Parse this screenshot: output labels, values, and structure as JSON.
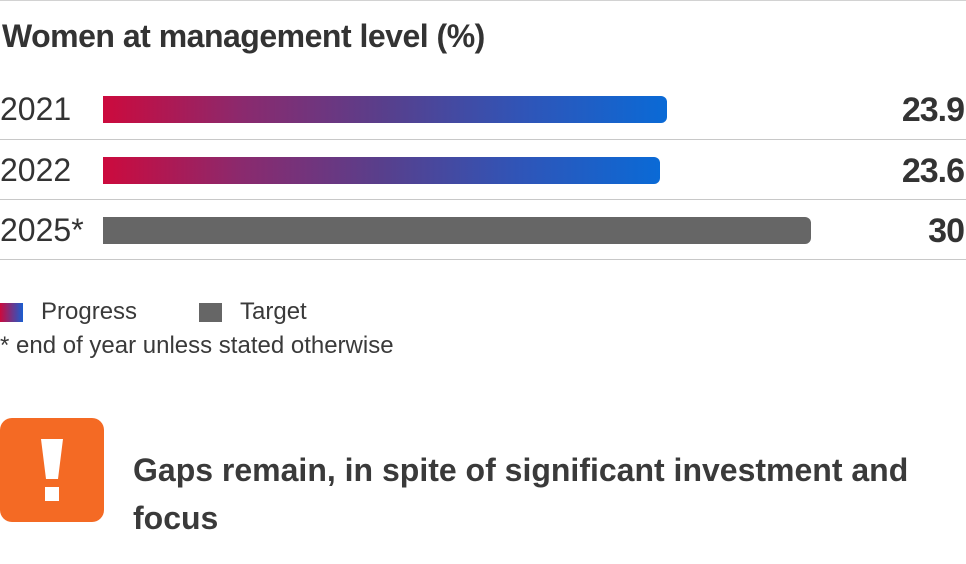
{
  "chart_data": {
    "type": "bar",
    "orientation": "horizontal",
    "title": "Women at management level (%)",
    "xlim": [
      0,
      40
    ],
    "categories": [
      "2021",
      "2022",
      "2025*"
    ],
    "values": [
      23.9,
      23.6,
      30
    ],
    "value_labels": [
      "23.9",
      "23.6",
      "30"
    ],
    "kinds": [
      "progress",
      "progress",
      "target"
    ],
    "legend": {
      "placement": "bottom-left",
      "items": [
        {
          "key": "progress",
          "label": "Progress"
        },
        {
          "key": "target",
          "label": "Target"
        }
      ]
    },
    "grid": false,
    "footnote": "* end of year unless stated otherwise"
  },
  "colors": {
    "progress_start": "#cc0a3d",
    "progress_end": "#0a6ad6",
    "target": "#666666",
    "alert": "#f46a24"
  },
  "callout": {
    "icon": "exclamation-icon",
    "text": "Gaps remain, in spite of significant investment and focus"
  }
}
